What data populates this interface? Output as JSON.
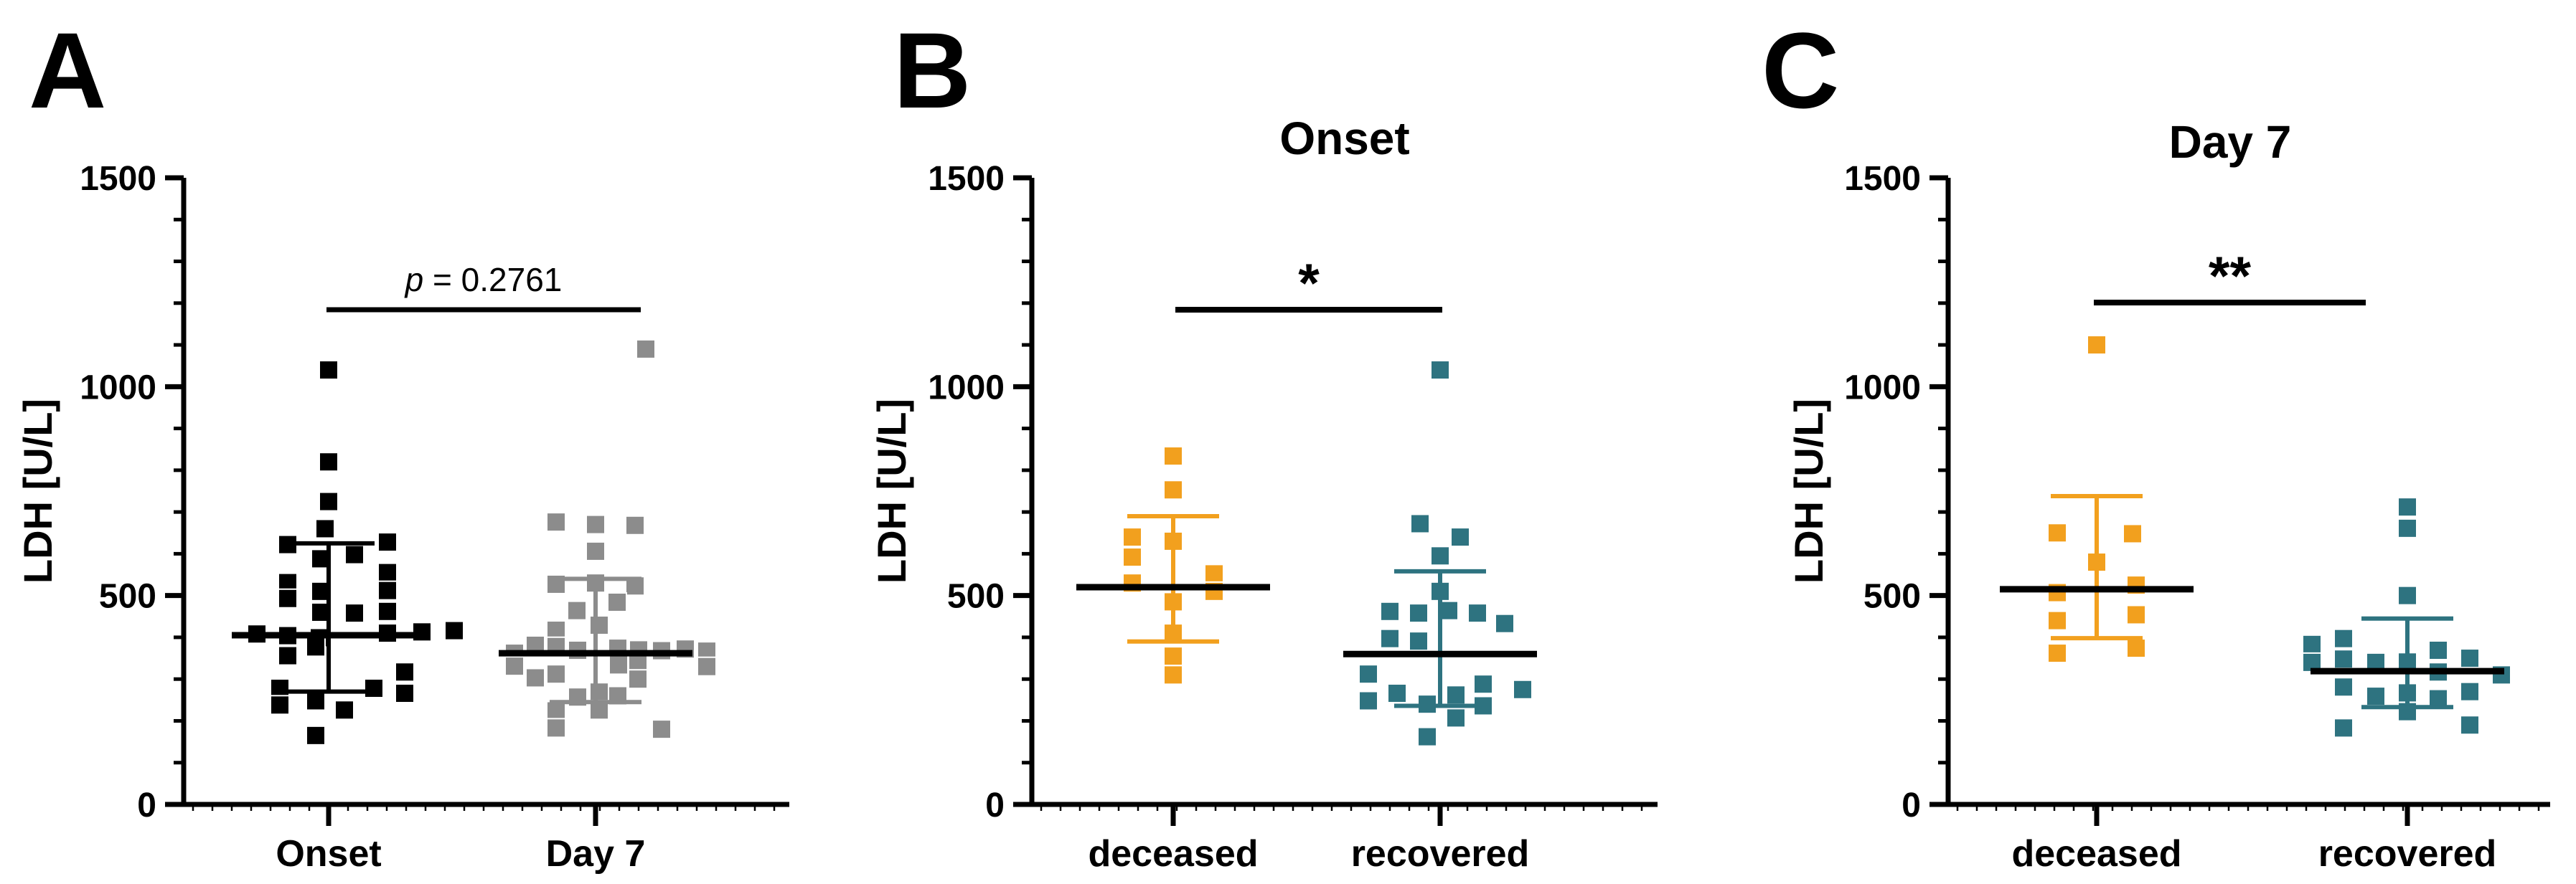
{
  "figure": {
    "background_color": "#FFFFFF",
    "axis_color": "#000000",
    "mean_line_color": "#000000",
    "significance_bar_color": "#000000"
  },
  "chart_data": [
    {
      "type": "scatter",
      "panel_letter": "A",
      "title": "",
      "ylabel": "LDH [U/L]",
      "ylim": [
        0,
        1500
      ],
      "yticks": [
        0,
        500,
        1000,
        1500
      ],
      "minor_tick_step": 100,
      "grid": false,
      "categories": [
        "Onset",
        "Day 7"
      ],
      "significance": {
        "label": "p = 0.2761",
        "style": "p-value"
      },
      "series": [
        {
          "name": "Onset",
          "color": "#000000",
          "error_color": "#000000",
          "mean": 405,
          "error_low": 270,
          "error_high": 625,
          "points": [
            [
              1040,
              0
            ],
            [
              820,
              0
            ],
            [
              725,
              0
            ],
            [
              660,
              -5
            ],
            [
              628,
              82
            ],
            [
              622,
              -57
            ],
            [
              598,
              36
            ],
            [
              588,
              -11
            ],
            [
              555,
              82
            ],
            [
              531,
              -57
            ],
            [
              512,
              82
            ],
            [
              510,
              -11
            ],
            [
              493,
              -57
            ],
            [
              462,
              82
            ],
            [
              460,
              -11
            ],
            [
              458,
              36
            ],
            [
              416,
              175
            ],
            [
              413,
              130
            ],
            [
              410,
              82
            ],
            [
              408,
              -100
            ],
            [
              404,
              -57
            ],
            [
              399,
              -13
            ],
            [
              377,
              -18
            ],
            [
              356,
              -57
            ],
            [
              317,
              106
            ],
            [
              278,
              -68
            ],
            [
              278,
              63
            ],
            [
              266,
              106
            ],
            [
              248,
              -18
            ],
            [
              238,
              -68
            ],
            [
              226,
              22
            ],
            [
              165,
              -18
            ]
          ]
        },
        {
          "name": "Day 7",
          "color": "#8C8C8C",
          "error_color": "#8C8C8C",
          "mean": 362,
          "error_low": 245,
          "error_high": 540,
          "points": [
            [
              1090,
              70
            ],
            [
              676,
              -55
            ],
            [
              670,
              0
            ],
            [
              668,
              55
            ],
            [
              606,
              0
            ],
            [
              527,
              -55
            ],
            [
              530,
              0
            ],
            [
              523,
              55
            ],
            [
              484,
              30
            ],
            [
              464,
              -26
            ],
            [
              429,
              5
            ],
            [
              417,
              -55
            ],
            [
              381,
              -84
            ],
            [
              378,
              -55
            ],
            [
              374,
              31
            ],
            [
              369,
              -25
            ],
            [
              370,
              60
            ],
            [
              368,
              92
            ],
            [
              372,
              125
            ],
            [
              367,
              155
            ],
            [
              362,
              -113
            ],
            [
              343,
              59
            ],
            [
              334,
              32
            ],
            [
              331,
              -113
            ],
            [
              330,
              155
            ],
            [
              312,
              -55
            ],
            [
              303,
              -84
            ],
            [
              300,
              59
            ],
            [
              269,
              5
            ],
            [
              260,
              31
            ],
            [
              257,
              -25
            ],
            [
              226,
              5
            ],
            [
              224,
              -55
            ],
            [
              183,
              -55
            ],
            [
              180,
              92
            ]
          ]
        }
      ]
    },
    {
      "type": "scatter",
      "panel_letter": "B",
      "title": "Onset",
      "ylabel": "LDH [U/L]",
      "ylim": [
        0,
        1500
      ],
      "yticks": [
        0,
        500,
        1000,
        1500
      ],
      "minor_tick_step": 100,
      "grid": false,
      "categories": [
        "deceased",
        "recovered"
      ],
      "significance": {
        "label": "*",
        "style": "asterisk"
      },
      "series": [
        {
          "name": "deceased",
          "color": "#F2A01E",
          "error_color": "#F2A01E",
          "mean": 520,
          "error_low": 390,
          "error_high": 690,
          "points": [
            [
              834,
              0
            ],
            [
              753,
              0
            ],
            [
              640,
              -57
            ],
            [
              630,
              0
            ],
            [
              592,
              -57
            ],
            [
              552,
              57
            ],
            [
              530,
              -57
            ],
            [
              510,
              57
            ],
            [
              485,
              0
            ],
            [
              410,
              0
            ],
            [
              355,
              0
            ],
            [
              310,
              0
            ]
          ]
        },
        {
          "name": "recovered",
          "color": "#2E7380",
          "error_color": "#2E7380",
          "mean": 360,
          "error_low": 236,
          "error_high": 558,
          "points": [
            [
              1040,
              0
            ],
            [
              672,
              -28
            ],
            [
              640,
              28
            ],
            [
              595,
              0
            ],
            [
              510,
              0
            ],
            [
              462,
              -70
            ],
            [
              458,
              -30
            ],
            [
              464,
              12
            ],
            [
              458,
              52
            ],
            [
              433,
              90
            ],
            [
              397,
              -70
            ],
            [
              391,
              -30
            ],
            [
              312,
              -100
            ],
            [
              288,
              60
            ],
            [
              275,
              115
            ],
            [
              266,
              -60
            ],
            [
              262,
              22
            ],
            [
              248,
              -100
            ],
            [
              240,
              -18
            ],
            [
              236,
              60
            ],
            [
              207,
              22
            ],
            [
              162,
              -18
            ]
          ]
        }
      ]
    },
    {
      "type": "scatter",
      "panel_letter": "C",
      "title": "Day 7",
      "ylabel": "LDH [U/L]",
      "ylim": [
        0,
        1500
      ],
      "yticks": [
        0,
        500,
        1000,
        1500
      ],
      "minor_tick_step": 100,
      "grid": false,
      "categories": [
        "deceased",
        "recovered"
      ],
      "significance": {
        "label": "**",
        "style": "asterisk"
      },
      "series": [
        {
          "name": "deceased",
          "color": "#F2A01E",
          "error_color": "#F2A01E",
          "mean": 515,
          "error_low": 398,
          "error_high": 738,
          "points": [
            [
              1100,
              0
            ],
            [
              650,
              -55
            ],
            [
              648,
              50
            ],
            [
              580,
              0
            ],
            [
              525,
              55
            ],
            [
              507,
              -55
            ],
            [
              454,
              55
            ],
            [
              440,
              -55
            ],
            [
              374,
              55
            ],
            [
              362,
              -55
            ]
          ]
        },
        {
          "name": "recovered",
          "color": "#2E7380",
          "error_color": "#2E7380",
          "mean": 319,
          "error_low": 233,
          "error_high": 445,
          "points": [
            [
              712,
              0
            ],
            [
              661,
              0
            ],
            [
              500,
              0
            ],
            [
              397,
              -89
            ],
            [
              383,
              -133
            ],
            [
              369,
              43
            ],
            [
              350,
              87
            ],
            [
              348,
              -89
            ],
            [
              341,
              0
            ],
            [
              340,
              -133
            ],
            [
              340,
              -44
            ],
            [
              317,
              43
            ],
            [
              310,
              131
            ],
            [
              281,
              -89
            ],
            [
              270,
              87
            ],
            [
              267,
              0
            ],
            [
              259,
              -44
            ],
            [
              253,
              43
            ],
            [
              222,
              0
            ],
            [
              190,
              87
            ],
            [
              183,
              -89
            ]
          ]
        }
      ]
    }
  ]
}
